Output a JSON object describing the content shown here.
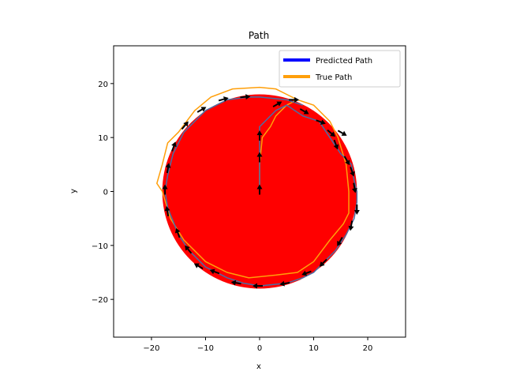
{
  "chart_data": {
    "type": "line",
    "title": "Path",
    "xlabel": "x",
    "ylabel": "y",
    "xlim": [
      -27,
      27
    ],
    "ylim": [
      -27,
      27
    ],
    "xticks": [
      -20,
      -10,
      0,
      10,
      20
    ],
    "yticks": [
      -20,
      -10,
      0,
      10,
      20
    ],
    "grid": false,
    "legend_position": "top-right",
    "colors": {
      "predicted": "#0000ff",
      "predicted_line": "#4a6fa5",
      "true": "#ff9f0a",
      "disc": "#ff0000",
      "arrows": "#000000"
    },
    "disc": {
      "center": [
        0,
        0
      ],
      "radius": 18
    },
    "series": [
      {
        "name": "Predicted Path",
        "x": [
          0,
          0,
          0,
          0,
          3,
          5,
          8,
          11,
          13,
          15,
          17,
          17.5,
          18,
          18,
          17.5,
          16,
          14,
          12,
          10,
          8,
          5,
          0,
          -3,
          -6,
          -10,
          -13,
          -15,
          -17,
          -17.5,
          -17,
          -16,
          -14,
          -10,
          -6,
          -2,
          0,
          5,
          8
        ],
        "y": [
          0,
          4,
          8,
          12,
          15,
          16,
          14,
          13,
          10,
          7,
          5,
          2,
          0,
          -2,
          -5,
          -8,
          -11,
          -13,
          -15,
          -16,
          -17,
          -17.5,
          -17,
          -16,
          -14,
          -11,
          -8,
          -3,
          0,
          3,
          7,
          11,
          15,
          17,
          17.5,
          17.5,
          17,
          16
        ]
      },
      {
        "name": "True Path",
        "x": [
          0,
          0,
          0.5,
          2,
          3,
          5,
          7,
          10,
          11,
          13,
          14.5,
          16,
          16.5,
          16.5,
          15.5,
          13,
          10,
          7,
          3,
          -2,
          -6,
          -10,
          -14,
          -16.5,
          -18,
          -19,
          -18,
          -17,
          -15,
          -12,
          -9,
          -5,
          0,
          3,
          5,
          7
        ],
        "y": [
          0,
          5,
          10,
          12,
          14,
          16,
          17,
          16,
          15,
          13,
          10,
          5,
          0,
          -4,
          -6,
          -9,
          -13,
          -15,
          -15.5,
          -16,
          -15,
          -13,
          -9,
          -5,
          0,
          1.5,
          5,
          9,
          11,
          15,
          17.5,
          19,
          19.3,
          19,
          18,
          17
        ]
      }
    ],
    "arrows": [
      {
        "x": 0,
        "y": 0,
        "angle": 90
      },
      {
        "x": 0,
        "y": 6,
        "angle": 90
      },
      {
        "x": 0,
        "y": 10,
        "angle": 90
      },
      {
        "x": 3,
        "y": 16,
        "angle": 30
      },
      {
        "x": 6,
        "y": 17,
        "angle": 0
      },
      {
        "x": 8,
        "y": 15,
        "angle": -30
      },
      {
        "x": 11,
        "y": 13,
        "angle": -20
      },
      {
        "x": 13,
        "y": 11,
        "angle": -40
      },
      {
        "x": 15,
        "y": 11,
        "angle": -30
      },
      {
        "x": 14,
        "y": 9,
        "angle": -70
      },
      {
        "x": 16,
        "y": 6,
        "angle": -60
      },
      {
        "x": 17,
        "y": 4,
        "angle": -70
      },
      {
        "x": 17.5,
        "y": 1,
        "angle": -80
      },
      {
        "x": 18,
        "y": -3,
        "angle": -90
      },
      {
        "x": 17,
        "y": -6,
        "angle": -100
      },
      {
        "x": 15,
        "y": -9,
        "angle": -120
      },
      {
        "x": 12,
        "y": -13,
        "angle": -135
      },
      {
        "x": 9,
        "y": -15,
        "angle": -160
      },
      {
        "x": 5,
        "y": -17,
        "angle": -170
      },
      {
        "x": 0,
        "y": -17.5,
        "angle": 180
      },
      {
        "x": -4,
        "y": -17,
        "angle": 170
      },
      {
        "x": -8,
        "y": -15,
        "angle": 160
      },
      {
        "x": -11,
        "y": -14,
        "angle": 150
      },
      {
        "x": -13,
        "y": -11,
        "angle": 130
      },
      {
        "x": -15,
        "y": -8,
        "angle": 110
      },
      {
        "x": -17,
        "y": -4,
        "angle": 100
      },
      {
        "x": -17.5,
        "y": 0,
        "angle": 90
      },
      {
        "x": -17,
        "y": 4,
        "angle": 80
      },
      {
        "x": -16,
        "y": 8,
        "angle": 70
      },
      {
        "x": -14,
        "y": 12,
        "angle": 50
      },
      {
        "x": -11,
        "y": 15,
        "angle": 30
      },
      {
        "x": -7,
        "y": 17,
        "angle": 15
      },
      {
        "x": -3,
        "y": 17.5,
        "angle": 5
      }
    ]
  }
}
